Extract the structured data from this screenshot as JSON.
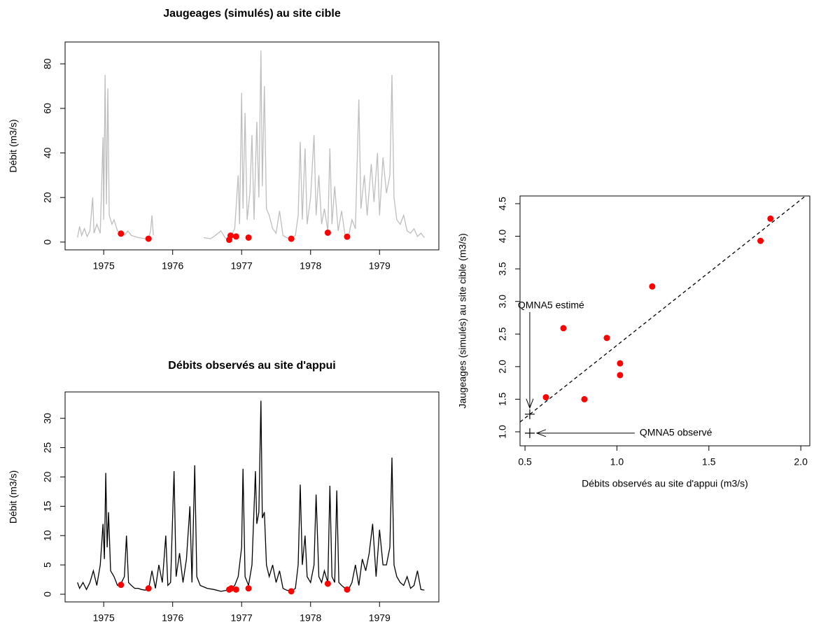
{
  "chart_data": [
    {
      "type": "line",
      "title": "Jaugeages (simulés) au site cible",
      "y_label": "Débit (m3/s)",
      "xlim": [
        1974.44,
        1979.86
      ],
      "ylim": [
        -3.5,
        89.8
      ],
      "xticks": [
        1975,
        1976,
        1977,
        1978,
        1979
      ],
      "yticks": [
        0,
        20,
        40,
        60,
        80
      ],
      "series": [
        {
          "type": "line",
          "color": "#bebebe",
          "x": [
            1974.62,
            1974.65,
            1974.68,
            1974.72,
            1974.76,
            1974.8,
            1974.84,
            1974.86,
            1974.9,
            1974.95,
            1974.99,
            1975,
            1975.02,
            1975.04,
            1975.06,
            1975.08,
            1975.12,
            1975.15,
            1975.2,
            1975.25,
            1975.3,
            1975.35,
            1975.4,
            1975.45,
            1975.5,
            1975.55,
            1975.6,
            1975.65,
            1975.68,
            1975.7,
            1975.72,
            1976,
            1976.45,
            1976.55,
            1976.62,
            1976.7,
            1976.76,
            1976.8,
            1976.85,
            1976.9,
            1976.95,
            1976.97,
            1977,
            1977.02,
            1977.05,
            1977.08,
            1977.12,
            1977.15,
            1977.18,
            1977.22,
            1977.25,
            1977.28,
            1977.3,
            1977.33,
            1977.36,
            1977.4,
            1977.45,
            1977.5,
            1977.55,
            1977.6,
            1977.65,
            1977.72,
            1977.78,
            1977.82,
            1977.85,
            1977.88,
            1977.92,
            1977.95,
            1978,
            1978.05,
            1978.08,
            1978.12,
            1978.16,
            1978.2,
            1978.25,
            1978.28,
            1978.31,
            1978.35,
            1978.4,
            1978.45,
            1978.5,
            1978.55,
            1978.6,
            1978.65,
            1978.7,
            1978.73,
            1978.78,
            1978.82,
            1978.88,
            1978.92,
            1978.97,
            1979,
            1979.05,
            1979.1,
            1979.15,
            1979.18,
            1979.21,
            1979.25,
            1979.3,
            1979.35,
            1979.4,
            1979.45,
            1979.5,
            1979.55,
            1979.6,
            1979.65
          ],
          "values": [
            2,
            7,
            3,
            6,
            2.5,
            5,
            20,
            4,
            8,
            4,
            47,
            10,
            75,
            17,
            69,
            12,
            8,
            10,
            5,
            4,
            3,
            5,
            3,
            2.5,
            2,
            1.8,
            1.5,
            1.5,
            5,
            12,
            3,
            null,
            2,
            1.5,
            3,
            5,
            2,
            1.2,
            3,
            6,
            30,
            8,
            67,
            15,
            58,
            10,
            22,
            48,
            10,
            54,
            20,
            86,
            25,
            70,
            15,
            12,
            6,
            4,
            14,
            3,
            2,
            1.5,
            3,
            12,
            45,
            10,
            42,
            8,
            20,
            48,
            12,
            30,
            8,
            15,
            5,
            42,
            8,
            25,
            5,
            14,
            3,
            2.5,
            10,
            6,
            64,
            15,
            30,
            12,
            35,
            18,
            40,
            12,
            38,
            22,
            30,
            75,
            20,
            10,
            8,
            12,
            5,
            4,
            6,
            2.5,
            4,
            2
          ]
        },
        {
          "type": "scatter",
          "color": "#ff0000",
          "x": [
            1975.25,
            1975.65,
            1976.82,
            1976.84,
            1976.92,
            1977.1,
            1977.72,
            1978.25,
            1978.53
          ],
          "values": [
            3.8,
            1.5,
            1.0,
            2.9,
            2.5,
            2.0,
            1.5,
            4.2,
            2.4
          ]
        }
      ]
    },
    {
      "type": "line",
      "title": "Débits observés au site d'appui",
      "y_label": "Débit (m3/s)",
      "xlim": [
        1974.44,
        1979.86
      ],
      "ylim": [
        -1.31,
        34.5
      ],
      "xticks": [
        1975,
        1976,
        1977,
        1978,
        1979
      ],
      "yticks": [
        0,
        5,
        10,
        15,
        20,
        25,
        30
      ],
      "series": [
        {
          "type": "line",
          "color": "#000000",
          "x": [
            1974.62,
            1974.65,
            1974.7,
            1974.75,
            1974.8,
            1974.85,
            1974.9,
            1974.95,
            1974.99,
            1975.01,
            1975.03,
            1975.05,
            1975.07,
            1975.1,
            1975.15,
            1975.2,
            1975.25,
            1975.3,
            1975.33,
            1975.36,
            1975.4,
            1975.45,
            1975.5,
            1975.55,
            1975.6,
            1975.65,
            1975.7,
            1975.75,
            1975.8,
            1975.85,
            1975.9,
            1975.93,
            1975.97,
            1976.02,
            1976.05,
            1976.1,
            1976.15,
            1976.2,
            1976.25,
            1976.28,
            1976.32,
            1976.35,
            1976.4,
            1976.5,
            1976.6,
            1976.7,
            1976.8,
            1976.85,
            1976.9,
            1976.95,
            1977,
            1977.02,
            1977.05,
            1977.1,
            1977.15,
            1977.2,
            1977.22,
            1977.25,
            1977.28,
            1977.3,
            1977.33,
            1977.36,
            1977.4,
            1977.45,
            1977.5,
            1977.55,
            1977.6,
            1977.65,
            1977.72,
            1977.78,
            1977.82,
            1977.85,
            1977.88,
            1977.92,
            1977.95,
            1978,
            1978.05,
            1978.08,
            1978.12,
            1978.16,
            1978.2,
            1978.25,
            1978.28,
            1978.31,
            1978.35,
            1978.38,
            1978.41,
            1978.45,
            1978.5,
            1978.55,
            1978.6,
            1978.65,
            1978.7,
            1978.75,
            1978.8,
            1978.85,
            1978.9,
            1978.95,
            1979,
            1979.05,
            1979.1,
            1979.15,
            1979.18,
            1979.21,
            1979.25,
            1979.3,
            1979.35,
            1979.4,
            1979.45,
            1979.5,
            1979.55,
            1979.6,
            1979.65
          ],
          "values": [
            2,
            1,
            2,
            0.8,
            2,
            4,
            1.5,
            5,
            12,
            6,
            20.7,
            8,
            14,
            4,
            3,
            1.5,
            1.8,
            3,
            10,
            2,
            1.5,
            1,
            1,
            0.8,
            0.7,
            0.8,
            4,
            1,
            5,
            2,
            10,
            1.5,
            2,
            21,
            3,
            7,
            2,
            6,
            15,
            2,
            22,
            3,
            1.5,
            1,
            0.8,
            0.5,
            0.7,
            1,
            1.5,
            3,
            8,
            21.4,
            3,
            1.5,
            5,
            21,
            12,
            14,
            33,
            13,
            14,
            5,
            3,
            5,
            2,
            4,
            1,
            0.7,
            0.5,
            1,
            5,
            18.7,
            5,
            10,
            3,
            2,
            5,
            17,
            3,
            2,
            4,
            2,
            18.5,
            3,
            2,
            17.7,
            2,
            1.5,
            1,
            0.8,
            2,
            5,
            1.5,
            6,
            4,
            7,
            12,
            3,
            11,
            5,
            5,
            8,
            23.3,
            5,
            3,
            2,
            1.5,
            3,
            1,
            1.5,
            4,
            0.8,
            0.7
          ]
        },
        {
          "type": "scatter",
          "color": "#ff0000",
          "x": [
            1975.25,
            1975.65,
            1976.82,
            1976.85,
            1976.92,
            1977.1,
            1977.72,
            1978.25,
            1978.53
          ],
          "values": [
            1.6,
            1.0,
            0.8,
            1.0,
            0.8,
            1.0,
            0.5,
            1.8,
            0.8
          ]
        }
      ]
    },
    {
      "type": "scatter",
      "x_label": "Débits observés au site d'appui (m3/s)",
      "y_label": "Jaugeages (simulés) au site cible (m3/s)",
      "xlim": [
        0.473,
        2.049
      ],
      "ylim": [
        0.785,
        4.618
      ],
      "xticks": [
        0.5,
        {
          "value": 1,
          "label": "1.0"
        },
        1.5,
        {
          "value": 2,
          "label": "2.0"
        }
      ],
      "yticks": [
        {
          "value": 1,
          "label": "1.0"
        },
        1.5,
        {
          "value": 2,
          "label": "2.0"
        },
        2.5,
        {
          "value": 3,
          "label": "3.0"
        },
        3.5,
        {
          "value": 4,
          "label": "4.0"
        },
        4.5
      ],
      "series": [
        {
          "type": "scatter",
          "color": "#ff0000",
          "x": [
            0.614,
            0.709,
            0.823,
            0.945,
            1.017,
            1.017,
            1.192,
            1.781,
            1.835
          ],
          "values": [
            1.53,
            2.59,
            1.5,
            2.44,
            2.05,
            1.87,
            3.23,
            3.93,
            4.27
          ]
        },
        {
          "type": "line",
          "color": "#000000",
          "dash": true,
          "x": [
            0.473,
            2.049
          ],
          "values": [
            1.15,
            4.67
          ]
        }
      ],
      "annotations": [
        {
          "text": "QMNA5 estimé",
          "x": 0.526,
          "y": 1.27,
          "arrow": "down"
        },
        {
          "text": "QMNA5 observé",
          "x": 0.526,
          "y": 0.98,
          "arrow": "left"
        }
      ]
    }
  ]
}
